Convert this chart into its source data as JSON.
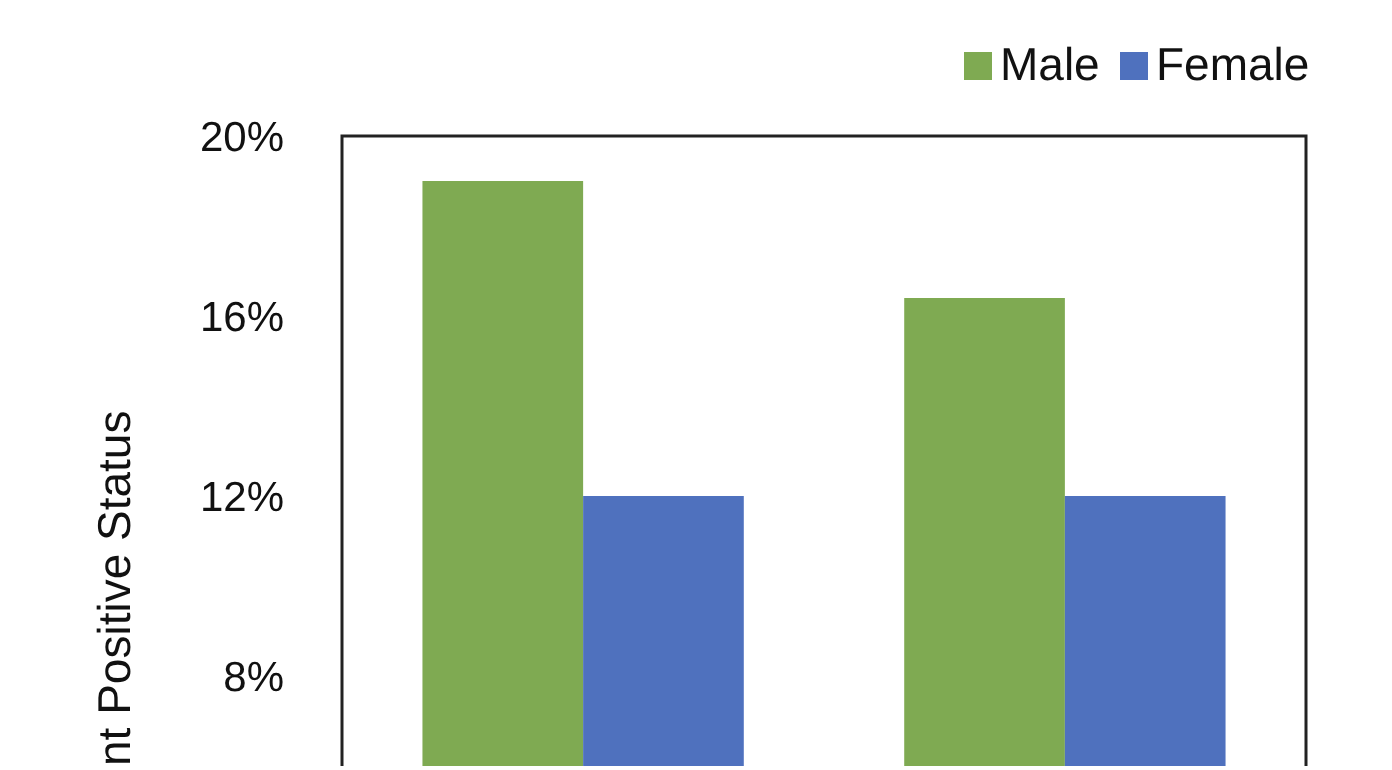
{
  "chart_data": {
    "type": "bar",
    "ylabel": "nt Positive Status",
    "categories": [
      null,
      null
    ],
    "series": [
      {
        "name": "Male",
        "color": "#7faa52",
        "values": [
          19,
          16.4
        ]
      },
      {
        "name": "Female",
        "color": "#4f71be",
        "values": [
          12,
          12
        ]
      }
    ],
    "ylim": [
      6,
      20
    ],
    "yticks": [
      {
        "value": 8,
        "label": "8%"
      },
      {
        "value": 12,
        "label": "12%"
      },
      {
        "value": 16,
        "label": "16%"
      },
      {
        "value": 20,
        "label": "20%"
      }
    ],
    "legend": "top right",
    "grid": false
  }
}
